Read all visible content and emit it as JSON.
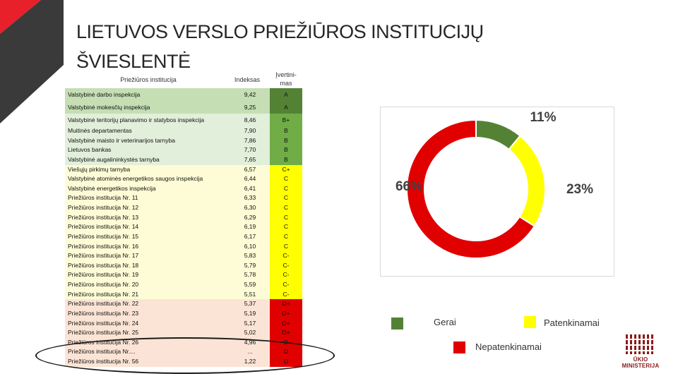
{
  "title_line1": "LIETUVOS VERSLO PRIEŽIŪROS INSTITUCIJŲ",
  "title_line2": "ŠVIESLENTĖ",
  "table": {
    "headers": {
      "institution": "Priežiūros institucija",
      "index": "Indeksas",
      "grade_line1": "Įvertini-",
      "grade_line2": "mas"
    },
    "rows": [
      {
        "name": "Valstybinė darbo inspekcija",
        "index": "9,42",
        "grade": "A",
        "band": "A"
      },
      {
        "name": "Valstybinė mokesčių inspekcija",
        "index": "9,25",
        "grade": "A",
        "band": "A"
      },
      {
        "name": "Valstybinė teritorijų planavimo ir statybos inspekcija",
        "index": "8,46",
        "grade": "B+",
        "band": "B"
      },
      {
        "name": "Muitinės departamentas",
        "index": "7,90",
        "grade": "B",
        "band": "B"
      },
      {
        "name": "Valstybinė maisto ir veterinarijos tarnyba",
        "index": "7,86",
        "grade": "B",
        "band": "B"
      },
      {
        "name": "Lietuvos bankas",
        "index": "7,70",
        "grade": "B",
        "band": "B"
      },
      {
        "name": "Valstybinė augalininkystės tarnyba",
        "index": "7,65",
        "grade": "B",
        "band": "B"
      },
      {
        "name": "Viešųjų pirkimų tarnyba",
        "index": "6,57",
        "grade": "C+",
        "band": "C"
      },
      {
        "name": "Valstybinė atominės energetikos saugos inspekcija",
        "index": "6,44",
        "grade": "C",
        "band": "C"
      },
      {
        "name": "Valstybinė energetikos inspekcija",
        "index": "6,41",
        "grade": "C",
        "band": "C"
      },
      {
        "name": "Priežiūros institucija Nr. 11",
        "index": "6,33",
        "grade": "C",
        "band": "C"
      },
      {
        "name": "Priežiūros institucija Nr. 12",
        "index": "6,30",
        "grade": "C",
        "band": "C"
      },
      {
        "name": "Priežiūros institucija Nr. 13",
        "index": "6,29",
        "grade": "C",
        "band": "C"
      },
      {
        "name": "Priežiūros institucija Nr. 14",
        "index": "6,19",
        "grade": "C",
        "band": "C"
      },
      {
        "name": "Priežiūros institucija Nr. 15",
        "index": "6,17",
        "grade": "C",
        "band": "C"
      },
      {
        "name": "Priežiūros institucija Nr. 16",
        "index": "6,10",
        "grade": "C",
        "band": "C"
      },
      {
        "name": "Priežiūros institucija Nr. 17",
        "index": "5,83",
        "grade": "C-",
        "band": "C"
      },
      {
        "name": "Priežiūros institucija Nr. 18",
        "index": "5,79",
        "grade": "C-",
        "band": "C"
      },
      {
        "name": "Priežiūros institucija Nr. 19",
        "index": "5,78",
        "grade": "C-",
        "band": "C"
      },
      {
        "name": "Priežiūros institucija Nr. 20",
        "index": "5,59",
        "grade": "C-",
        "band": "C"
      },
      {
        "name": "Priežiūros institucija Nr. 21",
        "index": "5,51",
        "grade": "C-",
        "band": "C"
      },
      {
        "name": "Priežiūros institucija Nr. 22",
        "index": "5,37",
        "grade": "D+",
        "band": "D"
      },
      {
        "name": "Priežiūros institucija Nr. 23",
        "index": "5,19",
        "grade": "D+",
        "band": "D"
      },
      {
        "name": "Priežiūros institucija Nr. 24",
        "index": "5,17",
        "grade": "D+",
        "band": "D"
      },
      {
        "name": "Priežiūros institucija Nr. 25",
        "index": "5,02",
        "grade": "D+",
        "band": "D"
      },
      {
        "name": "Priežiūros institucija Nr. 26",
        "index": "4,96",
        "grade": "D",
        "band": "D"
      },
      {
        "name": "Priežiūros institucija Nr....",
        "index": "...",
        "grade": "D",
        "band": "D"
      },
      {
        "name": "Priežiūros institucija Nr. 56",
        "index": "1,22",
        "grade": "D",
        "band": "D"
      }
    ]
  },
  "band_colors": {
    "A": {
      "row": "#c5deb4",
      "grade": "#548235"
    },
    "B": {
      "row": "#e2efda",
      "grade": "#70ad47"
    },
    "C": {
      "row": "#fdfcd6",
      "grade": "#ffff00"
    },
    "D": {
      "row": "#fbe4d5",
      "grade": "#e00000"
    }
  },
  "chart_data": {
    "type": "pie",
    "variant": "donut",
    "labels": [
      "Gerai",
      "Patenkinamai",
      "Nepatenkinamai"
    ],
    "values": [
      11,
      23,
      66
    ],
    "value_labels": [
      "11%",
      "23%",
      "66%"
    ],
    "colors": [
      "#548235",
      "#ffff00",
      "#e00000"
    ],
    "title": ""
  },
  "legend": [
    {
      "label": "Gerai",
      "color": "#548235"
    },
    {
      "label": "Patenkinamai",
      "color": "#ffff00"
    },
    {
      "label": "Nepatenkinamai",
      "color": "#e00000"
    }
  ],
  "logo": {
    "text": "ŪKIO MINISTERIJA"
  }
}
